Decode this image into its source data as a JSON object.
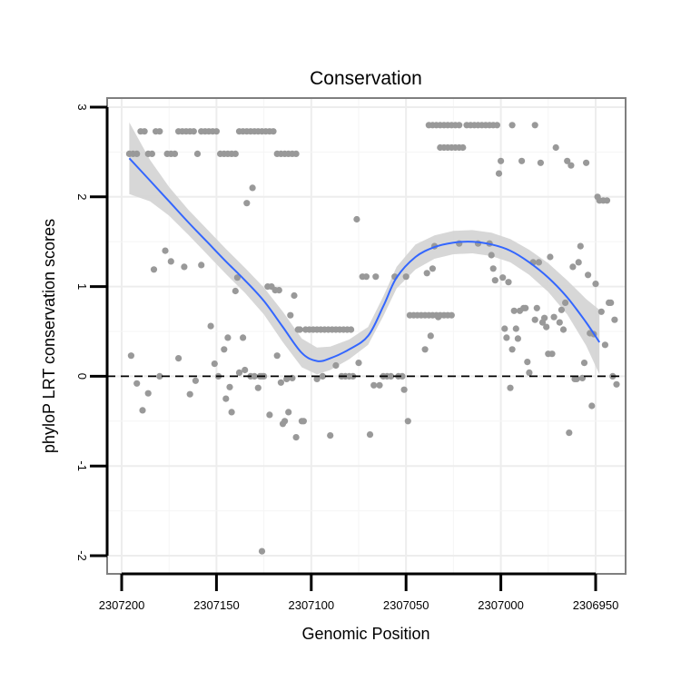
{
  "chart_data": {
    "type": "scatter",
    "title": "Conservation",
    "xlabel": "Genomic Position",
    "ylabel": "phyloP LRT conservation scores",
    "x_reversed": true,
    "xlim": [
      2307200,
      2306950
    ],
    "ylim": [
      -2,
      3
    ],
    "x_ticks": [
      2307200,
      2307150,
      2307100,
      2307050,
      2307000,
      2306950
    ],
    "x_tick_labels": [
      "2307200",
      "2307150",
      "2307100",
      "2307050",
      "2307000",
      "2306950"
    ],
    "y_ticks": [
      -2,
      -1,
      0,
      1,
      2,
      3
    ],
    "y_tick_labels": [
      "-2",
      "-1",
      "0",
      "1",
      "2",
      "3"
    ],
    "reference_line": {
      "y": 0,
      "style": "dashed"
    },
    "colors": {
      "points": "#999999",
      "smooth": "#3366ff",
      "band": "#d3d3d3",
      "grid": "#ededed",
      "panel_border": "#7f7f7f"
    },
    "smooth_line": {
      "method": "loess",
      "x": [
        2307196,
        2307185,
        2307175,
        2307165,
        2307155,
        2307145,
        2307135,
        2307125,
        2307115,
        2307105,
        2307097,
        2307090,
        2307080,
        2307070,
        2307062,
        2307055,
        2307045,
        2307035,
        2307025,
        2307015,
        2307005,
        2306995,
        2306985,
        2306975,
        2306965,
        2306955,
        2306948
      ],
      "y": [
        2.43,
        2.18,
        1.95,
        1.72,
        1.5,
        1.28,
        1.07,
        0.84,
        0.55,
        0.26,
        0.17,
        0.2,
        0.3,
        0.45,
        0.78,
        1.1,
        1.33,
        1.44,
        1.49,
        1.5,
        1.47,
        1.4,
        1.27,
        1.1,
        0.88,
        0.6,
        0.38
      ],
      "lower": [
        2.03,
        1.95,
        1.79,
        1.58,
        1.36,
        1.14,
        0.93,
        0.69,
        0.38,
        0.1,
        0.02,
        0.07,
        0.19,
        0.35,
        0.67,
        0.98,
        1.19,
        1.31,
        1.36,
        1.37,
        1.34,
        1.27,
        1.13,
        0.94,
        0.69,
        0.34,
        0.02
      ],
      "upper": [
        2.83,
        2.41,
        2.11,
        1.86,
        1.64,
        1.42,
        1.21,
        0.99,
        0.72,
        0.42,
        0.32,
        0.33,
        0.41,
        0.55,
        0.89,
        1.22,
        1.47,
        1.57,
        1.62,
        1.63,
        1.6,
        1.53,
        1.41,
        1.26,
        1.07,
        0.86,
        0.74
      ]
    },
    "points": [
      {
        "x": 2307196,
        "y": 2.48
      },
      {
        "x": 2307194,
        "y": 2.48
      },
      {
        "x": 2307192,
        "y": 2.48
      },
      {
        "x": 2307190,
        "y": 2.73
      },
      {
        "x": 2307188,
        "y": 2.73
      },
      {
        "x": 2307186,
        "y": 2.48
      },
      {
        "x": 2307184,
        "y": 2.48
      },
      {
        "x": 2307182,
        "y": 2.73
      },
      {
        "x": 2307180,
        "y": 2.73
      },
      {
        "x": 2307176,
        "y": 2.48
      },
      {
        "x": 2307174,
        "y": 2.48
      },
      {
        "x": 2307172,
        "y": 2.48
      },
      {
        "x": 2307170,
        "y": 2.73
      },
      {
        "x": 2307168,
        "y": 2.73
      },
      {
        "x": 2307166,
        "y": 2.73
      },
      {
        "x": 2307164,
        "y": 2.73
      },
      {
        "x": 2307162,
        "y": 2.73
      },
      {
        "x": 2307160,
        "y": 2.48
      },
      {
        "x": 2307158,
        "y": 2.73
      },
      {
        "x": 2307156,
        "y": 2.73
      },
      {
        "x": 2307154,
        "y": 2.73
      },
      {
        "x": 2307152,
        "y": 2.73
      },
      {
        "x": 2307150,
        "y": 2.73
      },
      {
        "x": 2307148,
        "y": 2.48
      },
      {
        "x": 2307146,
        "y": 2.48
      },
      {
        "x": 2307144,
        "y": 2.48
      },
      {
        "x": 2307142,
        "y": 2.48
      },
      {
        "x": 2307140,
        "y": 2.48
      },
      {
        "x": 2307138,
        "y": 2.73
      },
      {
        "x": 2307136,
        "y": 2.73
      },
      {
        "x": 2307134,
        "y": 2.73
      },
      {
        "x": 2307132,
        "y": 2.73
      },
      {
        "x": 2307130,
        "y": 2.73
      },
      {
        "x": 2307128,
        "y": 2.73
      },
      {
        "x": 2307126,
        "y": 2.73
      },
      {
        "x": 2307124,
        "y": 2.73
      },
      {
        "x": 2307122,
        "y": 2.73
      },
      {
        "x": 2307120,
        "y": 2.73
      },
      {
        "x": 2307118,
        "y": 2.48
      },
      {
        "x": 2307116,
        "y": 2.48
      },
      {
        "x": 2307114,
        "y": 2.48
      },
      {
        "x": 2307112,
        "y": 2.48
      },
      {
        "x": 2307110,
        "y": 2.48
      },
      {
        "x": 2307108,
        "y": 2.48
      },
      {
        "x": 2307195,
        "y": 0.23
      },
      {
        "x": 2307192,
        "y": -0.08
      },
      {
        "x": 2307189,
        "y": -0.38
      },
      {
        "x": 2307186,
        "y": -0.19
      },
      {
        "x": 2307183,
        "y": 1.19
      },
      {
        "x": 2307180,
        "y": 0.0
      },
      {
        "x": 2307177,
        "y": 1.4
      },
      {
        "x": 2307174,
        "y": 1.28
      },
      {
        "x": 2307170,
        "y": 0.2
      },
      {
        "x": 2307167,
        "y": 1.22
      },
      {
        "x": 2307164,
        "y": -0.2
      },
      {
        "x": 2307161,
        "y": -0.05
      },
      {
        "x": 2307158,
        "y": 1.24
      },
      {
        "x": 2307153,
        "y": 0.56
      },
      {
        "x": 2307151,
        "y": 0.14
      },
      {
        "x": 2307149,
        "y": 0.0
      },
      {
        "x": 2307146,
        "y": 0.3
      },
      {
        "x": 2307145,
        "y": -0.25
      },
      {
        "x": 2307144,
        "y": 0.43
      },
      {
        "x": 2307143,
        "y": -0.12
      },
      {
        "x": 2307142,
        "y": -0.4
      },
      {
        "x": 2307140,
        "y": 0.95
      },
      {
        "x": 2307139,
        "y": 1.1
      },
      {
        "x": 2307138,
        "y": 0.04
      },
      {
        "x": 2307136,
        "y": 0.43
      },
      {
        "x": 2307135,
        "y": 0.07
      },
      {
        "x": 2307134,
        "y": 1.93
      },
      {
        "x": 2307132,
        "y": 0.0
      },
      {
        "x": 2307131,
        "y": 2.1
      },
      {
        "x": 2307130,
        "y": 0.0
      },
      {
        "x": 2307128,
        "y": -0.13
      },
      {
        "x": 2307127,
        "y": 0.0
      },
      {
        "x": 2307126,
        "y": 0.0
      },
      {
        "x": 2307125,
        "y": 0.0
      },
      {
        "x": 2307123,
        "y": 1.0
      },
      {
        "x": 2307122,
        "y": -0.43
      },
      {
        "x": 2307121,
        "y": 1.0
      },
      {
        "x": 2307119,
        "y": 0.96
      },
      {
        "x": 2307118,
        "y": 0.23
      },
      {
        "x": 2307117,
        "y": 0.96
      },
      {
        "x": 2307116,
        "y": -0.07
      },
      {
        "x": 2307115,
        "y": -0.53
      },
      {
        "x": 2307114,
        "y": -0.5
      },
      {
        "x": 2307113,
        "y": -0.03
      },
      {
        "x": 2307112,
        "y": -0.4
      },
      {
        "x": 2307111,
        "y": 0.68
      },
      {
        "x": 2307110,
        "y": -0.02
      },
      {
        "x": 2307109,
        "y": 0.9
      },
      {
        "x": 2307108,
        "y": -0.68
      },
      {
        "x": 2307107,
        "y": 0.52
      },
      {
        "x": 2307106,
        "y": 0.52
      },
      {
        "x": 2307105,
        "y": -0.5
      },
      {
        "x": 2307104,
        "y": -0.5
      },
      {
        "x": 2307103,
        "y": 0.52
      },
      {
        "x": 2307101,
        "y": 0.52
      },
      {
        "x": 2307099,
        "y": 0.52
      },
      {
        "x": 2307097,
        "y": 0.52
      },
      {
        "x": 2307095,
        "y": 0.52
      },
      {
        "x": 2307093,
        "y": 0.52
      },
      {
        "x": 2307091,
        "y": 0.52
      },
      {
        "x": 2307089,
        "y": 0.52
      },
      {
        "x": 2307087,
        "y": 0.52
      },
      {
        "x": 2307085,
        "y": 0.52
      },
      {
        "x": 2307083,
        "y": 0.52
      },
      {
        "x": 2307081,
        "y": 0.52
      },
      {
        "x": 2307079,
        "y": 0.52
      },
      {
        "x": 2307097,
        "y": -0.03
      },
      {
        "x": 2307094,
        "y": 0.0
      },
      {
        "x": 2307090,
        "y": -0.66
      },
      {
        "x": 2307087,
        "y": 0.12
      },
      {
        "x": 2307084,
        "y": 0.0
      },
      {
        "x": 2307082,
        "y": 0.0
      },
      {
        "x": 2307080,
        "y": 0.0
      },
      {
        "x": 2307078,
        "y": 0.0
      },
      {
        "x": 2307076,
        "y": 1.75
      },
      {
        "x": 2307075,
        "y": 0.15
      },
      {
        "x": 2307073,
        "y": 1.11
      },
      {
        "x": 2307071,
        "y": 1.11
      },
      {
        "x": 2307069,
        "y": -0.65
      },
      {
        "x": 2307067,
        "y": -0.1
      },
      {
        "x": 2307066,
        "y": 1.11
      },
      {
        "x": 2307064,
        "y": -0.1
      },
      {
        "x": 2307062,
        "y": 0.0
      },
      {
        "x": 2307060,
        "y": 0.0
      },
      {
        "x": 2307058,
        "y": 0.0
      },
      {
        "x": 2307056,
        "y": 1.11
      },
      {
        "x": 2307054,
        "y": 0.0
      },
      {
        "x": 2307052,
        "y": 0.0
      },
      {
        "x": 2307051,
        "y": -0.15
      },
      {
        "x": 2307050,
        "y": 1.11
      },
      {
        "x": 2307049,
        "y": -0.5
      },
      {
        "x": 2307048,
        "y": 0.68
      },
      {
        "x": 2307046,
        "y": 0.68
      },
      {
        "x": 2307044,
        "y": 0.68
      },
      {
        "x": 2307042,
        "y": 0.68
      },
      {
        "x": 2307040,
        "y": 0.68
      },
      {
        "x": 2307038,
        "y": 0.68
      },
      {
        "x": 2307036,
        "y": 0.68
      },
      {
        "x": 2307034,
        "y": 0.68
      },
      {
        "x": 2307032,
        "y": 0.68
      },
      {
        "x": 2307030,
        "y": 0.68
      },
      {
        "x": 2307028,
        "y": 0.68
      },
      {
        "x": 2307026,
        "y": 0.68
      },
      {
        "x": 2307040,
        "y": 0.3
      },
      {
        "x": 2307039,
        "y": 1.15
      },
      {
        "x": 2307037,
        "y": 0.45
      },
      {
        "x": 2307036,
        "y": 1.2
      },
      {
        "x": 2307035,
        "y": 1.45
      },
      {
        "x": 2307033,
        "y": 0.66
      },
      {
        "x": 2307038,
        "y": 2.8
      },
      {
        "x": 2307036,
        "y": 2.8
      },
      {
        "x": 2307034,
        "y": 2.8
      },
      {
        "x": 2307032,
        "y": 2.8
      },
      {
        "x": 2307030,
        "y": 2.8
      },
      {
        "x": 2307028,
        "y": 2.8
      },
      {
        "x": 2307026,
        "y": 2.8
      },
      {
        "x": 2307024,
        "y": 2.8
      },
      {
        "x": 2307022,
        "y": 2.8
      },
      {
        "x": 2307032,
        "y": 2.55
      },
      {
        "x": 2307030,
        "y": 2.55
      },
      {
        "x": 2307028,
        "y": 2.55
      },
      {
        "x": 2307026,
        "y": 2.55
      },
      {
        "x": 2307024,
        "y": 2.55
      },
      {
        "x": 2307022,
        "y": 2.55
      },
      {
        "x": 2307020,
        "y": 2.55
      },
      {
        "x": 2307018,
        "y": 2.8
      },
      {
        "x": 2307016,
        "y": 2.8
      },
      {
        "x": 2307014,
        "y": 2.8
      },
      {
        "x": 2307012,
        "y": 2.8
      },
      {
        "x": 2307010,
        "y": 2.8
      },
      {
        "x": 2307008,
        "y": 2.8
      },
      {
        "x": 2307006,
        "y": 2.8
      },
      {
        "x": 2307004,
        "y": 2.8
      },
      {
        "x": 2307002,
        "y": 2.8
      },
      {
        "x": 2306994,
        "y": 2.8
      },
      {
        "x": 2306982,
        "y": 2.8
      },
      {
        "x": 2307022,
        "y": 1.48
      },
      {
        "x": 2307012,
        "y": 1.48
      },
      {
        "x": 2307006,
        "y": 1.48
      },
      {
        "x": 2307005,
        "y": 1.35
      },
      {
        "x": 2307004,
        "y": 1.2
      },
      {
        "x": 2307003,
        "y": 1.07
      },
      {
        "x": 2307001,
        "y": 2.26
      },
      {
        "x": 2307000,
        "y": 2.4
      },
      {
        "x": 2306999,
        "y": 1.1
      },
      {
        "x": 2306998,
        "y": 0.53
      },
      {
        "x": 2306997,
        "y": 0.43
      },
      {
        "x": 2306996,
        "y": 1.05
      },
      {
        "x": 2306995,
        "y": -0.13
      },
      {
        "x": 2306994,
        "y": 0.3
      },
      {
        "x": 2306993,
        "y": 0.73
      },
      {
        "x": 2306992,
        "y": 0.53
      },
      {
        "x": 2306991,
        "y": 0.42
      },
      {
        "x": 2306990,
        "y": 0.73
      },
      {
        "x": 2306989,
        "y": 2.4
      },
      {
        "x": 2306988,
        "y": 0.76
      },
      {
        "x": 2306987,
        "y": 0.76
      },
      {
        "x": 2306986,
        "y": 0.16
      },
      {
        "x": 2306985,
        "y": 0.04
      },
      {
        "x": 2306983,
        "y": 1.27
      },
      {
        "x": 2306982,
        "y": 0.63
      },
      {
        "x": 2306981,
        "y": 0.76
      },
      {
        "x": 2306980,
        "y": 1.27
      },
      {
        "x": 2306979,
        "y": 2.38
      },
      {
        "x": 2306978,
        "y": 0.6
      },
      {
        "x": 2306977,
        "y": 0.65
      },
      {
        "x": 2306976,
        "y": 0.55
      },
      {
        "x": 2306975,
        "y": 0.25
      },
      {
        "x": 2306974,
        "y": 1.33
      },
      {
        "x": 2306973,
        "y": 0.25
      },
      {
        "x": 2306972,
        "y": 0.66
      },
      {
        "x": 2306971,
        "y": 2.55
      },
      {
        "x": 2306969,
        "y": 0.6
      },
      {
        "x": 2306968,
        "y": 0.74
      },
      {
        "x": 2306967,
        "y": 0.52
      },
      {
        "x": 2306966,
        "y": 0.82
      },
      {
        "x": 2306965,
        "y": 2.4
      },
      {
        "x": 2306964,
        "y": -0.63
      },
      {
        "x": 2306963,
        "y": 2.35
      },
      {
        "x": 2306962,
        "y": 1.22
      },
      {
        "x": 2306961,
        "y": -0.03
      },
      {
        "x": 2306960,
        "y": -0.03
      },
      {
        "x": 2306959,
        "y": 1.27
      },
      {
        "x": 2306958,
        "y": 1.45
      },
      {
        "x": 2306957,
        "y": -0.02
      },
      {
        "x": 2306956,
        "y": 0.15
      },
      {
        "x": 2306955,
        "y": 2.38
      },
      {
        "x": 2306954,
        "y": 1.13
      },
      {
        "x": 2306953,
        "y": 0.48
      },
      {
        "x": 2306952,
        "y": -0.33
      },
      {
        "x": 2306951,
        "y": 0.47
      },
      {
        "x": 2306950,
        "y": 1.03
      },
      {
        "x": 2306949,
        "y": 2.0
      },
      {
        "x": 2306948,
        "y": 1.96
      },
      {
        "x": 2306947,
        "y": 0.72
      },
      {
        "x": 2306946,
        "y": 1.96
      },
      {
        "x": 2306945,
        "y": 0.35
      },
      {
        "x": 2306944,
        "y": 1.96
      },
      {
        "x": 2306943,
        "y": 0.82
      },
      {
        "x": 2306942,
        "y": 0.82
      },
      {
        "x": 2306941,
        "y": 0.0
      },
      {
        "x": 2306940,
        "y": 0.63
      },
      {
        "x": 2306939,
        "y": -0.09
      },
      {
        "x": 2307126,
        "y": -1.95
      }
    ]
  }
}
